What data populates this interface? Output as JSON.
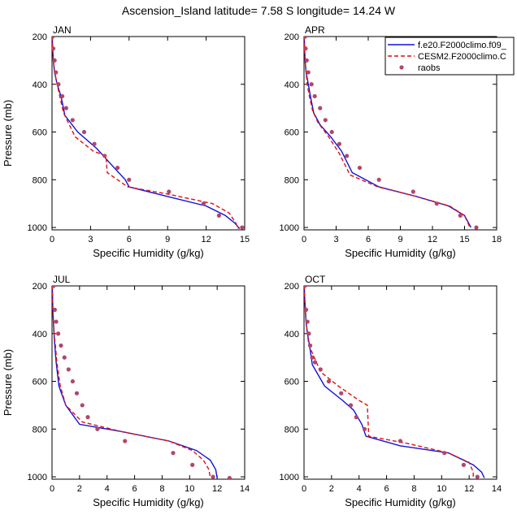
{
  "title": "Ascension_Island  latitude= 7.58 S longitude= 14.24 W",
  "legend": {
    "location": "top-right of APR panel",
    "entries": [
      {
        "name": "f.e20.F2000climo.f09_",
        "color": "#1111dd",
        "style": "solid"
      },
      {
        "name": "CESM2.F2000climo.C",
        "color": "#dd1111",
        "style": "dashed"
      },
      {
        "name": "raobs",
        "color": "#b0476a",
        "style": "marker"
      }
    ]
  },
  "chart_data": [
    {
      "type": "line",
      "panel": "JAN",
      "xlabel": "Specific Humidity (g/kg)",
      "ylabel": "Pressure (mb)",
      "xlim": [
        0,
        15
      ],
      "ylim": [
        1010,
        200
      ],
      "xticks": [
        0,
        3,
        6,
        9,
        12,
        15
      ],
      "yticks": [
        200,
        400,
        600,
        800,
        1000
      ],
      "series": [
        {
          "name": "f.e20.F2000climo.f09_",
          "x": [
            0.02,
            0.05,
            0.1,
            0.2,
            0.4,
            0.7,
            1.0,
            2.0,
            3.5,
            4.5,
            5.7,
            6.0,
            9.0,
            12.0,
            13.5,
            14.2,
            14.6
          ],
          "y": [
            200,
            250,
            300,
            350,
            400,
            450,
            530,
            600,
            670,
            730,
            800,
            830,
            870,
            910,
            950,
            980,
            1005
          ]
        },
        {
          "name": "CESM2.F2000climo.C",
          "x": [
            0.02,
            0.05,
            0.1,
            0.2,
            0.4,
            0.6,
            0.9,
            1.8,
            3.2,
            4.2,
            4.3,
            5.9,
            9.0,
            12.5,
            13.8,
            14.3,
            14.5
          ],
          "y": [
            200,
            250,
            300,
            350,
            400,
            450,
            520,
            620,
            680,
            700,
            770,
            830,
            860,
            900,
            940,
            980,
            1005
          ]
        },
        {
          "name": "raobs",
          "x": [
            0.05,
            0.1,
            0.2,
            0.3,
            0.5,
            0.8,
            1.1,
            1.6,
            2.5,
            3.3,
            4.1,
            5.1,
            6.0,
            9.1,
            11.8,
            13.0,
            14.8
          ],
          "y": [
            200,
            250,
            300,
            350,
            400,
            450,
            500,
            550,
            600,
            650,
            700,
            750,
            800,
            850,
            900,
            950,
            1000
          ]
        }
      ]
    },
    {
      "type": "line",
      "panel": "APR",
      "xlabel": "Specific Humidity (g/kg)",
      "ylabel": "",
      "xlim": [
        0,
        18
      ],
      "ylim": [
        1010,
        200
      ],
      "xticks": [
        0,
        3,
        6,
        9,
        12,
        15,
        18
      ],
      "yticks": [
        200,
        400,
        600,
        800,
        1000
      ],
      "series": [
        {
          "name": "f.e20.F2000climo.f09_",
          "x": [
            0.02,
            0.05,
            0.1,
            0.2,
            0.4,
            0.6,
            0.9,
            1.5,
            2.5,
            3.5,
            4.5,
            7.0,
            10.5,
            13.5,
            15.0,
            15.6
          ],
          "y": [
            200,
            250,
            300,
            350,
            400,
            450,
            520,
            570,
            620,
            680,
            770,
            830,
            870,
            910,
            950,
            1000
          ]
        },
        {
          "name": "CESM2.F2000climo.C",
          "x": [
            0.02,
            0.05,
            0.1,
            0.2,
            0.3,
            0.5,
            0.8,
            1.3,
            2.3,
            3.3,
            4.3,
            6.9,
            10.5,
            13.6,
            15.0,
            15.5
          ],
          "y": [
            200,
            250,
            300,
            350,
            400,
            450,
            510,
            560,
            620,
            690,
            780,
            830,
            870,
            910,
            950,
            1000
          ]
        },
        {
          "name": "raobs",
          "x": [
            0.1,
            0.15,
            0.25,
            0.4,
            0.7,
            1.0,
            1.5,
            2.0,
            2.6,
            3.3,
            4.0,
            5.2,
            7.0,
            10.2,
            12.4,
            14.6,
            16.1
          ],
          "y": [
            200,
            250,
            300,
            350,
            400,
            450,
            500,
            550,
            600,
            650,
            700,
            750,
            800,
            850,
            900,
            950,
            1000
          ]
        }
      ]
    },
    {
      "type": "line",
      "panel": "JUL",
      "xlabel": "Specific Humidity (g/kg)",
      "ylabel": "Pressure (mb)",
      "xlim": [
        0,
        14
      ],
      "ylim": [
        1010,
        200
      ],
      "xticks": [
        0,
        2,
        4,
        6,
        8,
        10,
        12,
        14
      ],
      "yticks": [
        200,
        400,
        600,
        800,
        1000
      ],
      "series": [
        {
          "name": "f.e20.F2000climo.f09_",
          "x": [
            0.02,
            0.04,
            0.06,
            0.1,
            0.15,
            0.2,
            0.3,
            0.5,
            1.0,
            2.0,
            5.0,
            8.5,
            10.5,
            11.5,
            11.9,
            12.0
          ],
          "y": [
            200,
            250,
            300,
            350,
            400,
            450,
            520,
            620,
            700,
            780,
            810,
            850,
            890,
            930,
            970,
            1005
          ]
        },
        {
          "name": "CESM2.F2000climo.C",
          "x": [
            0.02,
            0.04,
            0.06,
            0.1,
            0.15,
            0.25,
            0.35,
            0.6,
            1.0,
            2.2,
            5.0,
            8.5,
            10.2,
            11.0,
            11.4,
            11.5
          ],
          "y": [
            200,
            250,
            300,
            350,
            400,
            450,
            520,
            620,
            700,
            770,
            810,
            850,
            890,
            930,
            970,
            1005
          ]
        },
        {
          "name": "raobs",
          "x": [
            0.1,
            0.2,
            0.3,
            0.45,
            0.65,
            0.9,
            1.2,
            1.5,
            1.8,
            2.2,
            2.6,
            3.3,
            5.3,
            8.8,
            10.2,
            11.7,
            12.9
          ],
          "y": [
            200,
            300,
            350,
            400,
            450,
            500,
            550,
            600,
            650,
            700,
            750,
            800,
            850,
            900,
            950,
            1000,
            1005
          ]
        }
      ]
    },
    {
      "type": "line",
      "panel": "OCT",
      "xlabel": "Specific Humidity (g/kg)",
      "ylabel": "",
      "xlim": [
        0,
        14
      ],
      "ylim": [
        1010,
        200
      ],
      "xticks": [
        0,
        2,
        4,
        6,
        8,
        10,
        12,
        14
      ],
      "yticks": [
        200,
        400,
        600,
        800,
        1000
      ],
      "series": [
        {
          "name": "f.e20.F2000climo.f09_",
          "x": [
            0.02,
            0.05,
            0.1,
            0.15,
            0.25,
            0.4,
            0.6,
            1.5,
            2.8,
            3.6,
            4.2,
            4.5,
            7.0,
            10.5,
            12.3,
            12.9,
            13.1
          ],
          "y": [
            200,
            250,
            300,
            350,
            400,
            450,
            530,
            620,
            680,
            720,
            780,
            830,
            870,
            900,
            950,
            980,
            1005
          ]
        },
        {
          "name": "CESM2.F2000climo.C",
          "x": [
            0.02,
            0.05,
            0.1,
            0.15,
            0.25,
            0.35,
            0.6,
            1.2,
            2.5,
            4.0,
            4.6,
            4.7,
            7.5,
            10.5,
            12.0,
            12.3,
            12.3
          ],
          "y": [
            200,
            250,
            300,
            350,
            400,
            450,
            480,
            560,
            620,
            680,
            700,
            830,
            860,
            900,
            940,
            980,
            1005
          ]
        },
        {
          "name": "raobs",
          "x": [
            0.05,
            0.15,
            0.25,
            0.35,
            0.45,
            0.6,
            0.8,
            1.2,
            1.8,
            2.7,
            3.4,
            3.8,
            4.4,
            7.0,
            10.2,
            11.6,
            12.6
          ],
          "y": [
            200,
            300,
            350,
            400,
            450,
            500,
            520,
            550,
            600,
            650,
            700,
            750,
            800,
            850,
            900,
            950,
            1000
          ]
        }
      ]
    }
  ]
}
